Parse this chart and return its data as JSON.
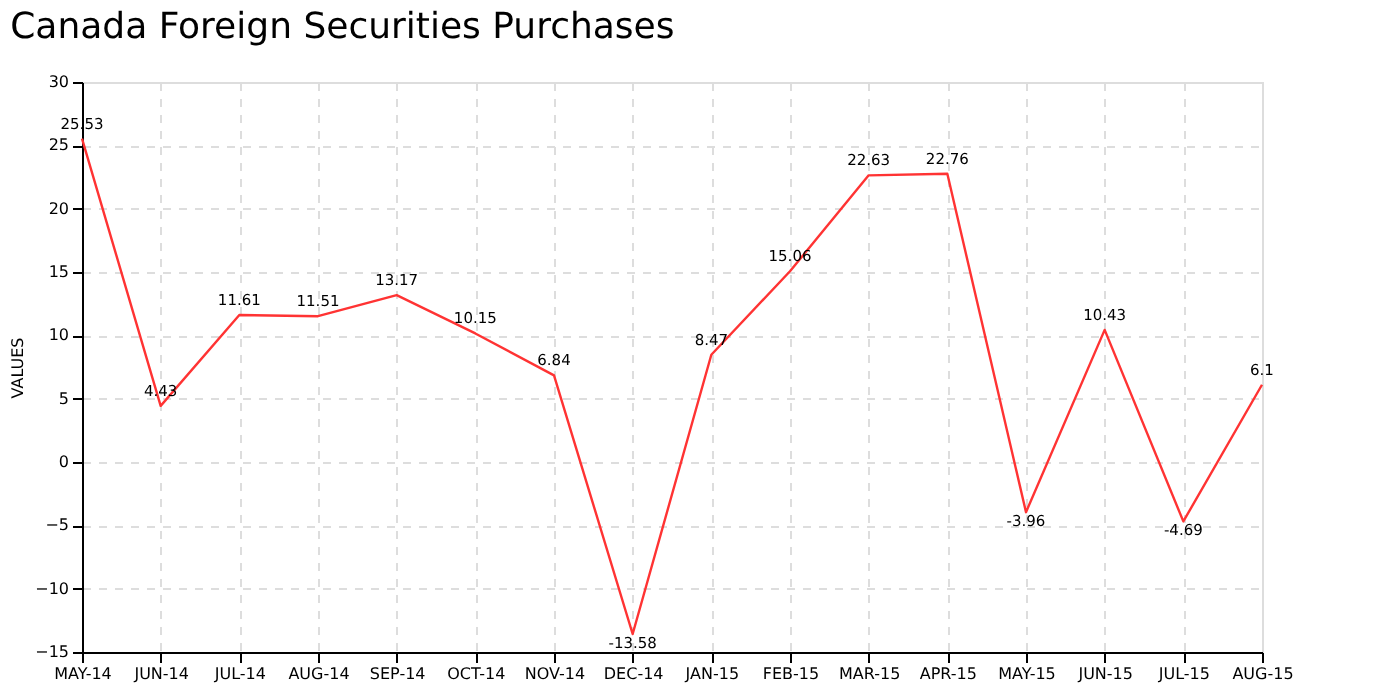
{
  "chart_data": {
    "type": "line",
    "title": "Canada Foreign Securities Purchases",
    "ylabel": "VALUES",
    "categories": [
      "MAY-14",
      "JUN-14",
      "JUL-14",
      "AUG-14",
      "SEP-14",
      "OCT-14",
      "NOV-14",
      "DEC-14",
      "JAN-15",
      "FEB-15",
      "MAR-15",
      "APR-15",
      "MAY-15",
      "JUN-15",
      "JUL-15",
      "AUG-15"
    ],
    "series": [
      {
        "color": "#ff3333",
        "values": [
          25.53,
          4.43,
          11.61,
          11.51,
          13.17,
          10.15,
          6.84,
          -13.58,
          8.47,
          15.06,
          22.63,
          22.76,
          -3.96,
          10.43,
          -4.69,
          6.1
        ]
      }
    ],
    "ylim": [
      -15,
      30
    ],
    "yticks": [
      -15,
      -10,
      -5,
      0,
      5,
      10,
      15,
      20,
      25,
      30
    ],
    "grid": true,
    "data_labels": true,
    "marker": "none",
    "line_style": "solid"
  }
}
